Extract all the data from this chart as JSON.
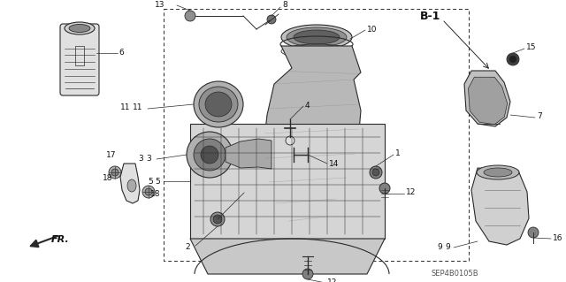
{
  "bg_color": "#ffffff",
  "diagram_code": "SEP4B0105B",
  "b1_label": "B-1",
  "fr_label": "FR.",
  "line_color": "#2a2a2a",
  "text_color": "#111111",
  "font_size_label": 6.5,
  "font_size_code": 6,
  "font_size_b1": 8,
  "figsize": [
    6.4,
    3.19
  ],
  "dpi": 100,
  "gray_fill": "#c8c8c8",
  "light_gray": "#e0e0e0",
  "mid_gray": "#b0b0b0"
}
